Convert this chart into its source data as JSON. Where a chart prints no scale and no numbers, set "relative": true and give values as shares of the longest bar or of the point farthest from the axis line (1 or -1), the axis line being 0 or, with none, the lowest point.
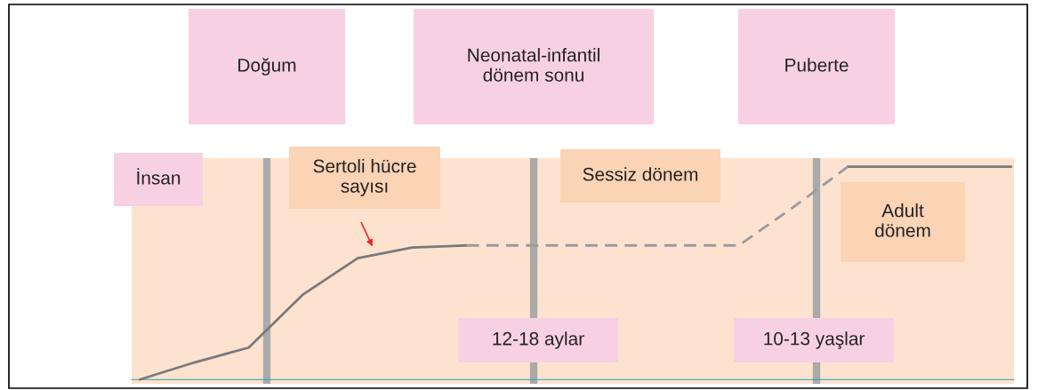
{
  "chart_data": {
    "type": "line",
    "relative": true,
    "categories": [
      null,
      null,
      null,
      null,
      null,
      null,
      null,
      null,
      null,
      null,
      null,
      null,
      null,
      null,
      null,
      null,
      null
    ],
    "series": [
      {
        "color": "#7a7a7a",
        "line_style": "solid",
        "values": [
          0.0,
          0.08,
          0.15,
          0.4,
          0.57,
          0.62,
          0.63,
          null,
          null,
          null,
          null,
          null,
          null,
          1.0,
          1.0,
          1.0,
          1.0
        ]
      },
      {
        "color": "#9a9a9a",
        "line_style": "dashed",
        "values": [
          null,
          null,
          null,
          null,
          null,
          null,
          0.63,
          0.63,
          0.63,
          0.63,
          0.63,
          0.63,
          0.81,
          1.0,
          null,
          null,
          null
        ]
      }
    ],
    "annotations": [
      "Doğum",
      "Neonatal-infantil\ndönem sonu",
      "Puberte",
      "İnsan",
      "Sertoli hücre\nsayısı",
      "Sessiz dönem",
      "Adult\ndönem",
      "12-18 aylar",
      "10-13 yaşlar"
    ]
  }
}
